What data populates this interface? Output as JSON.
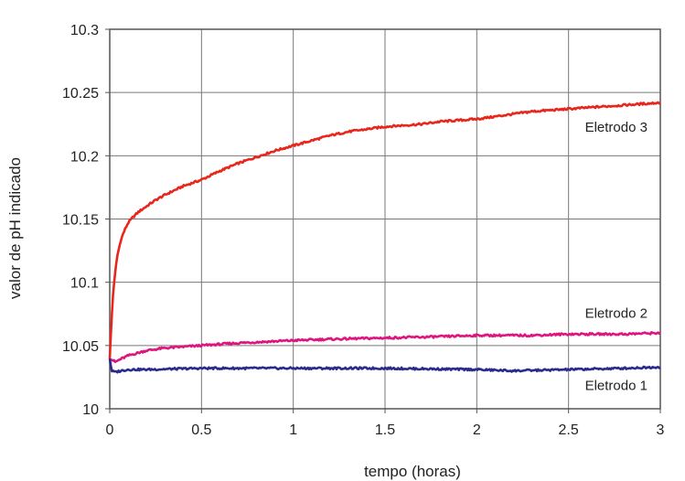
{
  "chart_data": {
    "type": "line",
    "xlabel": "tempo (horas)",
    "ylabel": "valor de pH indicado",
    "xlim": [
      0,
      3
    ],
    "ylim": [
      10,
      10.3
    ],
    "x_ticks": [
      "0",
      "0.5",
      "1",
      "1.5",
      "2",
      "2.5",
      "3"
    ],
    "y_ticks": [
      "10",
      "10.05",
      "10.1",
      "10.15",
      "10.2",
      "10.25",
      "10.3"
    ],
    "grid": true,
    "series": [
      {
        "name": "Eletrodo 3",
        "color": "#e8261c",
        "x": [
          0.0,
          0.01,
          0.02,
          0.04,
          0.06,
          0.08,
          0.1,
          0.13,
          0.16,
          0.2,
          0.25,
          0.3,
          0.4,
          0.5,
          0.6,
          0.7,
          0.8,
          0.9,
          1.0,
          1.1,
          1.2,
          1.3,
          1.4,
          1.5,
          1.6,
          1.7,
          1.8,
          1.9,
          2.0,
          2.1,
          2.2,
          2.3,
          2.4,
          2.5,
          2.6,
          2.7,
          2.8,
          2.9,
          3.0
        ],
        "values": [
          10.04,
          10.07,
          10.095,
          10.12,
          10.133,
          10.141,
          10.147,
          10.152,
          10.156,
          10.16,
          10.165,
          10.169,
          10.176,
          10.181,
          10.188,
          10.194,
          10.199,
          10.204,
          10.208,
          10.212,
          10.216,
          10.219,
          10.221,
          10.223,
          10.224,
          10.225,
          10.227,
          10.228,
          10.229,
          10.231,
          10.233,
          10.235,
          10.236,
          10.237,
          10.238,
          10.239,
          10.24,
          10.241,
          10.242
        ]
      },
      {
        "name": "Eletrodo 2",
        "color": "#e0147e",
        "x": [
          0.0,
          0.03,
          0.07,
          0.1,
          0.15,
          0.2,
          0.3,
          0.4,
          0.5,
          0.7,
          1.0,
          1.2,
          1.5,
          1.8,
          2.0,
          2.3,
          2.5,
          2.8,
          3.0
        ],
        "values": [
          10.04,
          10.037,
          10.04,
          10.042,
          10.044,
          10.046,
          10.048,
          10.049,
          10.05,
          10.052,
          10.054,
          10.055,
          10.056,
          10.057,
          10.058,
          10.058,
          10.059,
          10.059,
          10.06
        ]
      },
      {
        "name": "Eletrodo 1",
        "color": "#2a2a8c",
        "x": [
          0.0,
          0.01,
          0.03,
          0.06,
          0.1,
          0.2,
          0.5,
          1.0,
          1.5,
          2.0,
          2.2,
          2.5,
          2.8,
          3.0
        ],
        "values": [
          10.04,
          10.03,
          10.029,
          10.03,
          10.031,
          10.031,
          10.032,
          10.032,
          10.032,
          10.031,
          10.03,
          10.031,
          10.032,
          10.033
        ]
      }
    ]
  }
}
